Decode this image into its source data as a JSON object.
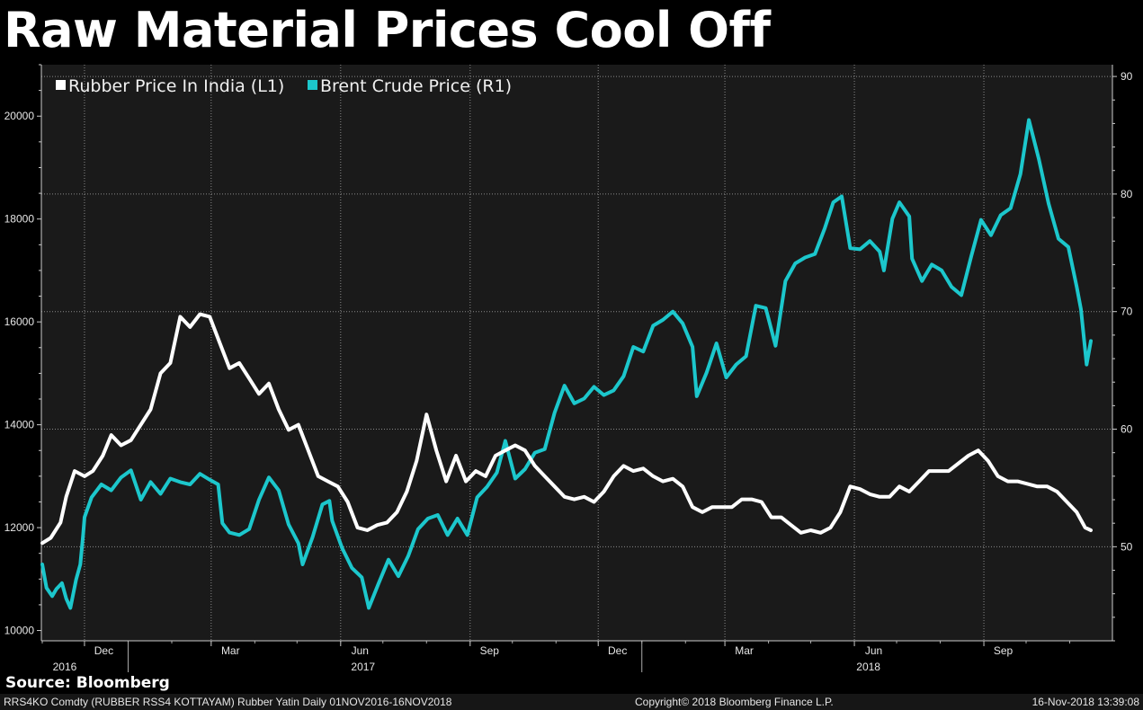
{
  "title": "Raw Material Prices Cool Off",
  "source": "Source: Bloomberg",
  "footer": {
    "left": "RRS4KO Comdty (RUBBER RSS4 KOTTAYAM) Rubber Yatin  Daily 01NOV2016-16NOV2018",
    "middle": "Copyright© 2018 Bloomberg Finance L.P.",
    "right": "16-Nov-2018 13:39:08"
  },
  "colors": {
    "background": "#1a1a1a",
    "rubber": "#ffffff",
    "brent": "#1cc7cc",
    "grid": "#8a8a8a"
  },
  "chart_data": {
    "type": "line",
    "title": "Raw Material Prices Cool Off",
    "x_axis": {
      "month_ticks": [
        "Dec",
        "Mar",
        "Jun",
        "Sep",
        "Dec",
        "Mar",
        "Jun",
        "Sep"
      ],
      "year_labels": [
        "2016",
        "2017",
        "2018"
      ],
      "range": [
        "2016-11-01",
        "2018-11-16"
      ]
    },
    "left_axis": {
      "series": "Rubber Price In India (L1)",
      "ylim": [
        9800,
        21000
      ],
      "ticks": [
        10000,
        12000,
        14000,
        16000,
        18000,
        20000
      ]
    },
    "right_axis": {
      "series": "Brent Crude Price (R1)",
      "ylim": [
        42,
        91
      ],
      "ticks": [
        50,
        60,
        70,
        80,
        90
      ]
    },
    "legend": [
      "Rubber Price In India (L1)",
      "Brent Crude Price (R1)"
    ],
    "series": [
      {
        "name": "Rubber Price In India (L1)",
        "axis": "left",
        "points": [
          [
            "2016-11-01",
            11700
          ],
          [
            "2016-11-07",
            11800
          ],
          [
            "2016-11-14",
            12100
          ],
          [
            "2016-11-18",
            12600
          ],
          [
            "2016-11-24",
            13100
          ],
          [
            "2016-12-01",
            13000
          ],
          [
            "2016-12-07",
            13100
          ],
          [
            "2016-12-14",
            13400
          ],
          [
            "2016-12-20",
            13800
          ],
          [
            "2016-12-27",
            13600
          ],
          [
            "2017-01-03",
            13700
          ],
          [
            "2017-01-10",
            14000
          ],
          [
            "2017-01-17",
            14300
          ],
          [
            "2017-01-24",
            15000
          ],
          [
            "2017-01-31",
            15200
          ],
          [
            "2017-02-07",
            16100
          ],
          [
            "2017-02-14",
            15900
          ],
          [
            "2017-02-21",
            16150
          ],
          [
            "2017-02-28",
            16100
          ],
          [
            "2017-03-07",
            15600
          ],
          [
            "2017-03-14",
            15100
          ],
          [
            "2017-03-21",
            15200
          ],
          [
            "2017-03-28",
            14900
          ],
          [
            "2017-04-04",
            14600
          ],
          [
            "2017-04-11",
            14800
          ],
          [
            "2017-04-18",
            14300
          ],
          [
            "2017-04-25",
            13900
          ],
          [
            "2017-05-02",
            14000
          ],
          [
            "2017-05-09",
            13500
          ],
          [
            "2017-05-16",
            13000
          ],
          [
            "2017-05-23",
            12900
          ],
          [
            "2017-05-30",
            12800
          ],
          [
            "2017-06-06",
            12500
          ],
          [
            "2017-06-13",
            12000
          ],
          [
            "2017-06-20",
            11950
          ],
          [
            "2017-06-27",
            12050
          ],
          [
            "2017-07-04",
            12100
          ],
          [
            "2017-07-11",
            12300
          ],
          [
            "2017-07-18",
            12700
          ],
          [
            "2017-07-25",
            13300
          ],
          [
            "2017-08-01",
            14200
          ],
          [
            "2017-08-08",
            13500
          ],
          [
            "2017-08-15",
            12900
          ],
          [
            "2017-08-22",
            13400
          ],
          [
            "2017-08-29",
            12900
          ],
          [
            "2017-09-05",
            13100
          ],
          [
            "2017-09-12",
            13000
          ],
          [
            "2017-09-19",
            13400
          ],
          [
            "2017-09-26",
            13500
          ],
          [
            "2017-10-03",
            13600
          ],
          [
            "2017-10-10",
            13500
          ],
          [
            "2017-10-17",
            13200
          ],
          [
            "2017-10-24",
            13000
          ],
          [
            "2017-10-31",
            12800
          ],
          [
            "2017-11-07",
            12600
          ],
          [
            "2017-11-14",
            12550
          ],
          [
            "2017-11-21",
            12600
          ],
          [
            "2017-11-28",
            12500
          ],
          [
            "2017-12-05",
            12700
          ],
          [
            "2017-12-12",
            13000
          ],
          [
            "2017-12-19",
            13200
          ],
          [
            "2017-12-26",
            13100
          ],
          [
            "2018-01-02",
            13150
          ],
          [
            "2018-01-09",
            13000
          ],
          [
            "2018-01-16",
            12900
          ],
          [
            "2018-01-23",
            12950
          ],
          [
            "2018-01-30",
            12800
          ],
          [
            "2018-02-06",
            12400
          ],
          [
            "2018-02-13",
            12300
          ],
          [
            "2018-02-20",
            12400
          ],
          [
            "2018-02-27",
            12400
          ],
          [
            "2018-03-06",
            12400
          ],
          [
            "2018-03-13",
            12550
          ],
          [
            "2018-03-20",
            12550
          ],
          [
            "2018-03-27",
            12500
          ],
          [
            "2018-04-03",
            12200
          ],
          [
            "2018-04-10",
            12200
          ],
          [
            "2018-04-17",
            12050
          ],
          [
            "2018-04-24",
            11900
          ],
          [
            "2018-05-01",
            11950
          ],
          [
            "2018-05-08",
            11900
          ],
          [
            "2018-05-15",
            12000
          ],
          [
            "2018-05-22",
            12300
          ],
          [
            "2018-05-29",
            12800
          ],
          [
            "2018-06-05",
            12750
          ],
          [
            "2018-06-12",
            12650
          ],
          [
            "2018-06-19",
            12600
          ],
          [
            "2018-06-26",
            12600
          ],
          [
            "2018-07-03",
            12800
          ],
          [
            "2018-07-10",
            12700
          ],
          [
            "2018-07-17",
            12900
          ],
          [
            "2018-07-24",
            13100
          ],
          [
            "2018-07-31",
            13100
          ],
          [
            "2018-08-07",
            13100
          ],
          [
            "2018-08-14",
            13250
          ],
          [
            "2018-08-21",
            13400
          ],
          [
            "2018-08-28",
            13500
          ],
          [
            "2018-09-04",
            13300
          ],
          [
            "2018-09-11",
            13000
          ],
          [
            "2018-09-18",
            12900
          ],
          [
            "2018-09-25",
            12900
          ],
          [
            "2018-10-02",
            12850
          ],
          [
            "2018-10-09",
            12800
          ],
          [
            "2018-10-16",
            12800
          ],
          [
            "2018-10-23",
            12700
          ],
          [
            "2018-10-30",
            12500
          ],
          [
            "2018-11-06",
            12300
          ],
          [
            "2018-11-12",
            12000
          ],
          [
            "2018-11-16",
            11950
          ]
        ]
      },
      {
        "name": "Brent Crude Price (R1)",
        "axis": "right",
        "points": [
          [
            "2016-11-01",
            48.5
          ],
          [
            "2016-11-04",
            46.5
          ],
          [
            "2016-11-08",
            45.8
          ],
          [
            "2016-11-11",
            46.4
          ],
          [
            "2016-11-15",
            46.9
          ],
          [
            "2016-11-18",
            45.6
          ],
          [
            "2016-11-21",
            44.8
          ],
          [
            "2016-11-25",
            47.2
          ],
          [
            "2016-11-28",
            48.5
          ],
          [
            "2016-11-30",
            51.0
          ],
          [
            "2016-12-01",
            52.5
          ],
          [
            "2016-12-06",
            54.2
          ],
          [
            "2016-12-13",
            55.3
          ],
          [
            "2016-12-20",
            54.8
          ],
          [
            "2016-12-27",
            55.9
          ],
          [
            "2017-01-03",
            56.5
          ],
          [
            "2017-01-10",
            54.0
          ],
          [
            "2017-01-17",
            55.5
          ],
          [
            "2017-01-24",
            54.5
          ],
          [
            "2017-01-31",
            55.8
          ],
          [
            "2017-02-07",
            55.5
          ],
          [
            "2017-02-14",
            55.3
          ],
          [
            "2017-02-21",
            56.2
          ],
          [
            "2017-02-28",
            55.7
          ],
          [
            "2017-03-06",
            55.3
          ],
          [
            "2017-03-09",
            52.0
          ],
          [
            "2017-03-14",
            51.2
          ],
          [
            "2017-03-21",
            51.0
          ],
          [
            "2017-03-28",
            51.5
          ],
          [
            "2017-04-04",
            54.0
          ],
          [
            "2017-04-11",
            55.9
          ],
          [
            "2017-04-18",
            54.8
          ],
          [
            "2017-04-25",
            51.9
          ],
          [
            "2017-05-02",
            50.3
          ],
          [
            "2017-05-05",
            48.5
          ],
          [
            "2017-05-12",
            50.8
          ],
          [
            "2017-05-19",
            53.6
          ],
          [
            "2017-05-24",
            53.9
          ],
          [
            "2017-05-26",
            52.2
          ],
          [
            "2017-06-02",
            49.9
          ],
          [
            "2017-06-09",
            48.2
          ],
          [
            "2017-06-16",
            47.4
          ],
          [
            "2017-06-21",
            44.8
          ],
          [
            "2017-06-28",
            46.9
          ],
          [
            "2017-07-05",
            48.9
          ],
          [
            "2017-07-12",
            47.5
          ],
          [
            "2017-07-19",
            49.2
          ],
          [
            "2017-07-26",
            51.5
          ],
          [
            "2017-08-02",
            52.4
          ],
          [
            "2017-08-09",
            52.7
          ],
          [
            "2017-08-16",
            51.0
          ],
          [
            "2017-08-23",
            52.4
          ],
          [
            "2017-08-30",
            51.0
          ],
          [
            "2017-09-06",
            54.2
          ],
          [
            "2017-09-13",
            55.1
          ],
          [
            "2017-09-20",
            56.3
          ],
          [
            "2017-09-26",
            59.0
          ],
          [
            "2017-10-03",
            55.8
          ],
          [
            "2017-10-10",
            56.6
          ],
          [
            "2017-10-17",
            58.0
          ],
          [
            "2017-10-24",
            58.3
          ],
          [
            "2017-10-31",
            61.4
          ],
          [
            "2017-11-07",
            63.7
          ],
          [
            "2017-11-14",
            62.2
          ],
          [
            "2017-11-21",
            62.6
          ],
          [
            "2017-11-28",
            63.6
          ],
          [
            "2017-12-05",
            62.9
          ],
          [
            "2017-12-12",
            63.3
          ],
          [
            "2017-12-19",
            64.5
          ],
          [
            "2017-12-26",
            67.0
          ],
          [
            "2018-01-02",
            66.6
          ],
          [
            "2018-01-09",
            68.8
          ],
          [
            "2018-01-16",
            69.3
          ],
          [
            "2018-01-23",
            70.0
          ],
          [
            "2018-01-30",
            69.0
          ],
          [
            "2018-02-06",
            67.0
          ],
          [
            "2018-02-09",
            62.8
          ],
          [
            "2018-02-16",
            64.8
          ],
          [
            "2018-02-23",
            67.3
          ],
          [
            "2018-03-02",
            64.4
          ],
          [
            "2018-03-09",
            65.5
          ],
          [
            "2018-03-16",
            66.2
          ],
          [
            "2018-03-23",
            70.5
          ],
          [
            "2018-03-30",
            70.3
          ],
          [
            "2018-04-06",
            67.1
          ],
          [
            "2018-04-13",
            72.6
          ],
          [
            "2018-04-20",
            74.1
          ],
          [
            "2018-04-27",
            74.6
          ],
          [
            "2018-05-04",
            74.9
          ],
          [
            "2018-05-11",
            77.1
          ],
          [
            "2018-05-17",
            79.3
          ],
          [
            "2018-05-23",
            79.8
          ],
          [
            "2018-05-29",
            75.4
          ],
          [
            "2018-06-05",
            75.3
          ],
          [
            "2018-06-12",
            76.0
          ],
          [
            "2018-06-19",
            75.1
          ],
          [
            "2018-06-22",
            73.5
          ],
          [
            "2018-06-28",
            77.9
          ],
          [
            "2018-07-03",
            79.3
          ],
          [
            "2018-07-10",
            78.1
          ],
          [
            "2018-07-12",
            74.5
          ],
          [
            "2018-07-19",
            72.6
          ],
          [
            "2018-07-26",
            74.0
          ],
          [
            "2018-08-02",
            73.5
          ],
          [
            "2018-08-09",
            72.1
          ],
          [
            "2018-08-16",
            71.4
          ],
          [
            "2018-08-23",
            74.7
          ],
          [
            "2018-08-30",
            77.8
          ],
          [
            "2018-09-06",
            76.5
          ],
          [
            "2018-09-13",
            78.2
          ],
          [
            "2018-09-20",
            78.8
          ],
          [
            "2018-09-27",
            81.7
          ],
          [
            "2018-10-03",
            86.3
          ],
          [
            "2018-10-10",
            83.0
          ],
          [
            "2018-10-17",
            79.2
          ],
          [
            "2018-10-24",
            76.2
          ],
          [
            "2018-10-31",
            75.5
          ],
          [
            "2018-11-06",
            72.1
          ],
          [
            "2018-11-09",
            70.2
          ],
          [
            "2018-11-13",
            65.5
          ],
          [
            "2018-11-16",
            67.5
          ]
        ]
      }
    ]
  }
}
